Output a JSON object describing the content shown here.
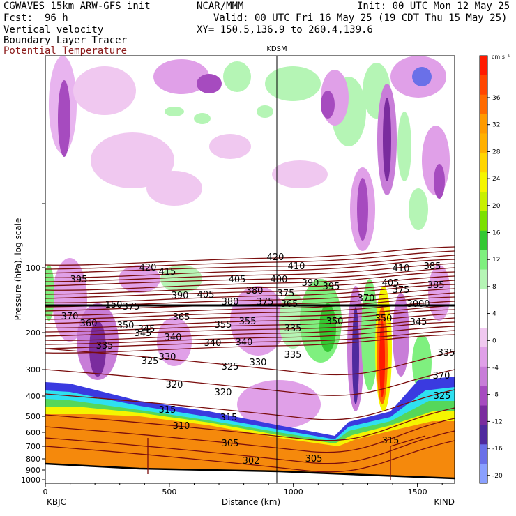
{
  "header": {
    "model": "CGWAVES 15km ARW-GFS init",
    "org": "NCAR/MMM",
    "init": "Init: 00 UTC Mon 12 May 25",
    "fcst_label": "Fcst:",
    "fcst_value": "96 h",
    "valid": "Valid: 00 UTC Fri 16 May 25 (19 CDT Thu 15 May 25)",
    "xy": "XY= 150.5,136.9 to 260.4,139.6",
    "fields": [
      "Vertical velocity",
      "Boundary Layer Tracer",
      "Potential Temperature"
    ]
  },
  "colors": {
    "theta_contour": "#7a0d0d",
    "terrain_fill": "#f5890c",
    "tracer_blue": "#1a2cff",
    "tracer_cyan": "#2fe0f0",
    "tracer_green": "#55d75a"
  },
  "chart_data": {
    "type": "heatmap",
    "title": "KDSM",
    "xlabel": "Distance (km)",
    "ylabel": "Pressure (hPa), log scale",
    "xlim": [
      0,
      1650
    ],
    "x_ticks": [
      "0",
      "500",
      "1000",
      "1500"
    ],
    "y_ticks": [
      "100",
      "200",
      "300",
      "400",
      "500",
      "600",
      "700",
      "800",
      "900",
      "1000"
    ],
    "y_scale": "log",
    "left_station": "KBJC",
    "right_station": "KIND",
    "marker_station": "KDSM",
    "marker_x": 940,
    "colorbar": {
      "unit": "cm s⁻¹",
      "ticks": [
        "36",
        "32",
        "28",
        "24",
        "20",
        "16",
        "12",
        "8",
        "4",
        "0",
        "-4",
        "-8",
        "-12",
        "-16",
        "-20"
      ],
      "colors": [
        "#ff1a00",
        "#ff4500",
        "#ff6a00",
        "#ff9a00",
        "#ffb000",
        "#ffd500",
        "#f5f500",
        "#c8f000",
        "#7be000",
        "#33c833",
        "#7ff07f",
        "#b5f5b5",
        "#ffffff",
        "#ffffff",
        "#f0c8f0",
        "#e0a0e8",
        "#c87dd8",
        "#a64bbf",
        "#7a2c9e",
        "#4f2a9e",
        "#6a70e8",
        "#8aa0ff"
      ]
    },
    "theta_labels": [
      "420",
      "415",
      "410",
      "405",
      "400",
      "395",
      "390",
      "385",
      "380",
      "375",
      "370",
      "365",
      "360",
      "355",
      "350",
      "345",
      "340",
      "335",
      "330",
      "325",
      "320",
      "315",
      "310",
      "305",
      "302"
    ],
    "tracer_labels": [
      "150",
      "3000"
    ]
  }
}
